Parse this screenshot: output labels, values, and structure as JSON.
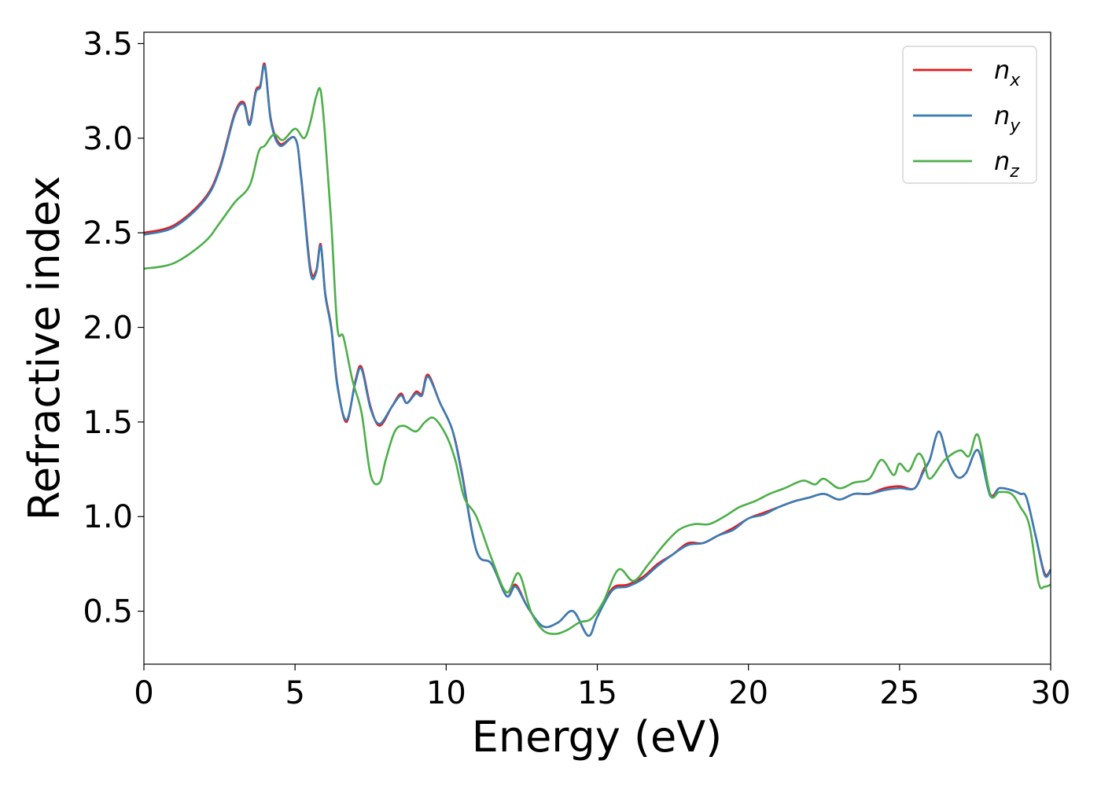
{
  "chart_data": {
    "type": "line",
    "xlabel": "Energy (eV)",
    "ylabel": "Refractive index",
    "xlim": [
      0,
      30
    ],
    "ylim": [
      0.22,
      3.56
    ],
    "xticks": [
      0,
      5,
      10,
      15,
      20,
      25,
      30
    ],
    "xtick_labels": [
      "0",
      "5",
      "10",
      "15",
      "20",
      "25",
      "30"
    ],
    "yticks": [
      0.5,
      1.0,
      1.5,
      2.0,
      2.5,
      3.0,
      3.5
    ],
    "ytick_labels": [
      "0.5",
      "1.0",
      "1.5",
      "2.0",
      "2.5",
      "3.0",
      "3.5"
    ],
    "grid": false,
    "legend_position": "top-right",
    "series": [
      {
        "name": "n",
        "subscript": "x",
        "color": "#e41a1c",
        "x": [
          0,
          1,
          2,
          2.5,
          3,
          3.3,
          3.5,
          3.7,
          3.85,
          4.0,
          4.2,
          4.5,
          5.0,
          5.2,
          5.5,
          5.7,
          5.85,
          6.0,
          6.2,
          6.4,
          6.7,
          7.0,
          7.2,
          7.5,
          7.8,
          8.2,
          8.5,
          8.7,
          9.0,
          9.2,
          9.4,
          9.8,
          10.2,
          10.5,
          11.0,
          11.5,
          12.0,
          12.3,
          12.7,
          13.2,
          13.7,
          14.2,
          14.7,
          15.0,
          15.5,
          16.0,
          16.5,
          17.0,
          17.5,
          18.0,
          18.5,
          19.0,
          19.5,
          20.0,
          20.5,
          21.0,
          21.5,
          22.0,
          22.5,
          23.0,
          23.5,
          24.0,
          24.5,
          25.0,
          25.5,
          25.8,
          26.0,
          26.3,
          26.6,
          26.9,
          27.2,
          27.6,
          28.0,
          28.3,
          28.7,
          29.0,
          29.2,
          29.5,
          29.8,
          30.0
        ],
        "y": [
          2.5,
          2.54,
          2.68,
          2.84,
          3.13,
          3.19,
          3.08,
          3.25,
          3.28,
          3.39,
          3.1,
          2.97,
          3.0,
          2.8,
          2.32,
          2.3,
          2.44,
          2.18,
          2.0,
          1.7,
          1.5,
          1.72,
          1.79,
          1.58,
          1.48,
          1.58,
          1.65,
          1.6,
          1.66,
          1.65,
          1.75,
          1.6,
          1.46,
          1.25,
          0.82,
          0.75,
          0.58,
          0.64,
          0.52,
          0.42,
          0.44,
          0.5,
          0.37,
          0.47,
          0.62,
          0.64,
          0.68,
          0.75,
          0.8,
          0.86,
          0.86,
          0.9,
          0.94,
          0.99,
          1.02,
          1.05,
          1.08,
          1.1,
          1.12,
          1.09,
          1.12,
          1.12,
          1.15,
          1.16,
          1.15,
          1.25,
          1.3,
          1.45,
          1.3,
          1.21,
          1.23,
          1.35,
          1.12,
          1.15,
          1.14,
          1.12,
          1.1,
          0.9,
          0.7,
          0.72
        ]
      },
      {
        "name": "n",
        "subscript": "y",
        "color": "#377eb8",
        "x": [
          0,
          1,
          2,
          2.5,
          3,
          3.3,
          3.5,
          3.7,
          3.85,
          4.0,
          4.2,
          4.5,
          5.0,
          5.2,
          5.5,
          5.7,
          5.85,
          6.0,
          6.2,
          6.4,
          6.7,
          7.0,
          7.2,
          7.5,
          7.8,
          8.2,
          8.5,
          8.7,
          9.0,
          9.2,
          9.4,
          9.8,
          10.2,
          10.5,
          11.0,
          11.5,
          12.0,
          12.3,
          12.7,
          13.2,
          13.7,
          14.2,
          14.7,
          15.0,
          15.5,
          16.0,
          16.5,
          17.0,
          17.5,
          18.0,
          18.5,
          19.0,
          19.5,
          20.0,
          20.5,
          21.0,
          21.5,
          22.0,
          22.5,
          23.0,
          23.5,
          24.0,
          24.5,
          25.0,
          25.5,
          25.8,
          26.0,
          26.3,
          26.6,
          26.9,
          27.2,
          27.6,
          28.0,
          28.3,
          28.7,
          29.0,
          29.2,
          29.5,
          29.8,
          30.0
        ],
        "y": [
          2.49,
          2.53,
          2.67,
          2.83,
          3.12,
          3.18,
          3.07,
          3.24,
          3.27,
          3.38,
          3.09,
          2.96,
          3.0,
          2.79,
          2.3,
          2.29,
          2.43,
          2.17,
          1.99,
          1.69,
          1.51,
          1.71,
          1.78,
          1.57,
          1.49,
          1.58,
          1.64,
          1.6,
          1.65,
          1.64,
          1.74,
          1.6,
          1.46,
          1.24,
          0.82,
          0.75,
          0.58,
          0.63,
          0.52,
          0.42,
          0.44,
          0.5,
          0.37,
          0.47,
          0.61,
          0.63,
          0.67,
          0.74,
          0.8,
          0.85,
          0.86,
          0.9,
          0.93,
          0.99,
          1.01,
          1.05,
          1.08,
          1.1,
          1.12,
          1.09,
          1.12,
          1.12,
          1.14,
          1.15,
          1.15,
          1.24,
          1.3,
          1.45,
          1.3,
          1.21,
          1.23,
          1.35,
          1.11,
          1.15,
          1.14,
          1.12,
          1.1,
          0.9,
          0.69,
          0.72
        ]
      },
      {
        "name": "n",
        "subscript": "z",
        "color": "#4daf4a",
        "x": [
          0,
          1,
          2,
          2.5,
          3,
          3.5,
          3.8,
          4.0,
          4.3,
          4.6,
          5.0,
          5.3,
          5.5,
          5.7,
          5.85,
          6.0,
          6.2,
          6.4,
          6.6,
          6.9,
          7.2,
          7.5,
          7.8,
          8.0,
          8.3,
          8.6,
          9.0,
          9.3,
          9.6,
          10.0,
          10.3,
          10.6,
          11.0,
          11.5,
          12.0,
          12.4,
          12.8,
          13.2,
          13.6,
          14.0,
          14.4,
          14.8,
          15.2,
          15.7,
          16.2,
          16.7,
          17.2,
          17.7,
          18.2,
          18.7,
          19.2,
          19.7,
          20.2,
          20.7,
          21.2,
          21.8,
          22.2,
          22.5,
          23.0,
          23.5,
          24.0,
          24.4,
          24.8,
          25.0,
          25.3,
          25.6,
          25.8,
          26.0,
          26.5,
          27.0,
          27.3,
          27.6,
          28.0,
          28.3,
          28.7,
          29.0,
          29.3,
          29.6,
          29.8,
          30.0
        ],
        "y": [
          2.31,
          2.34,
          2.45,
          2.55,
          2.66,
          2.75,
          2.93,
          2.96,
          3.02,
          2.99,
          3.05,
          3.0,
          3.08,
          3.22,
          3.25,
          3.0,
          2.55,
          2.0,
          1.95,
          1.72,
          1.55,
          1.22,
          1.18,
          1.3,
          1.45,
          1.48,
          1.45,
          1.5,
          1.52,
          1.43,
          1.3,
          1.1,
          1.0,
          0.78,
          0.6,
          0.7,
          0.5,
          0.4,
          0.38,
          0.4,
          0.44,
          0.46,
          0.55,
          0.72,
          0.66,
          0.75,
          0.85,
          0.93,
          0.96,
          0.96,
          1.0,
          1.05,
          1.08,
          1.12,
          1.15,
          1.19,
          1.17,
          1.2,
          1.15,
          1.18,
          1.2,
          1.3,
          1.22,
          1.28,
          1.24,
          1.33,
          1.3,
          1.2,
          1.3,
          1.35,
          1.32,
          1.43,
          1.12,
          1.13,
          1.12,
          1.05,
          0.95,
          0.65,
          0.63,
          0.64
        ]
      }
    ]
  }
}
